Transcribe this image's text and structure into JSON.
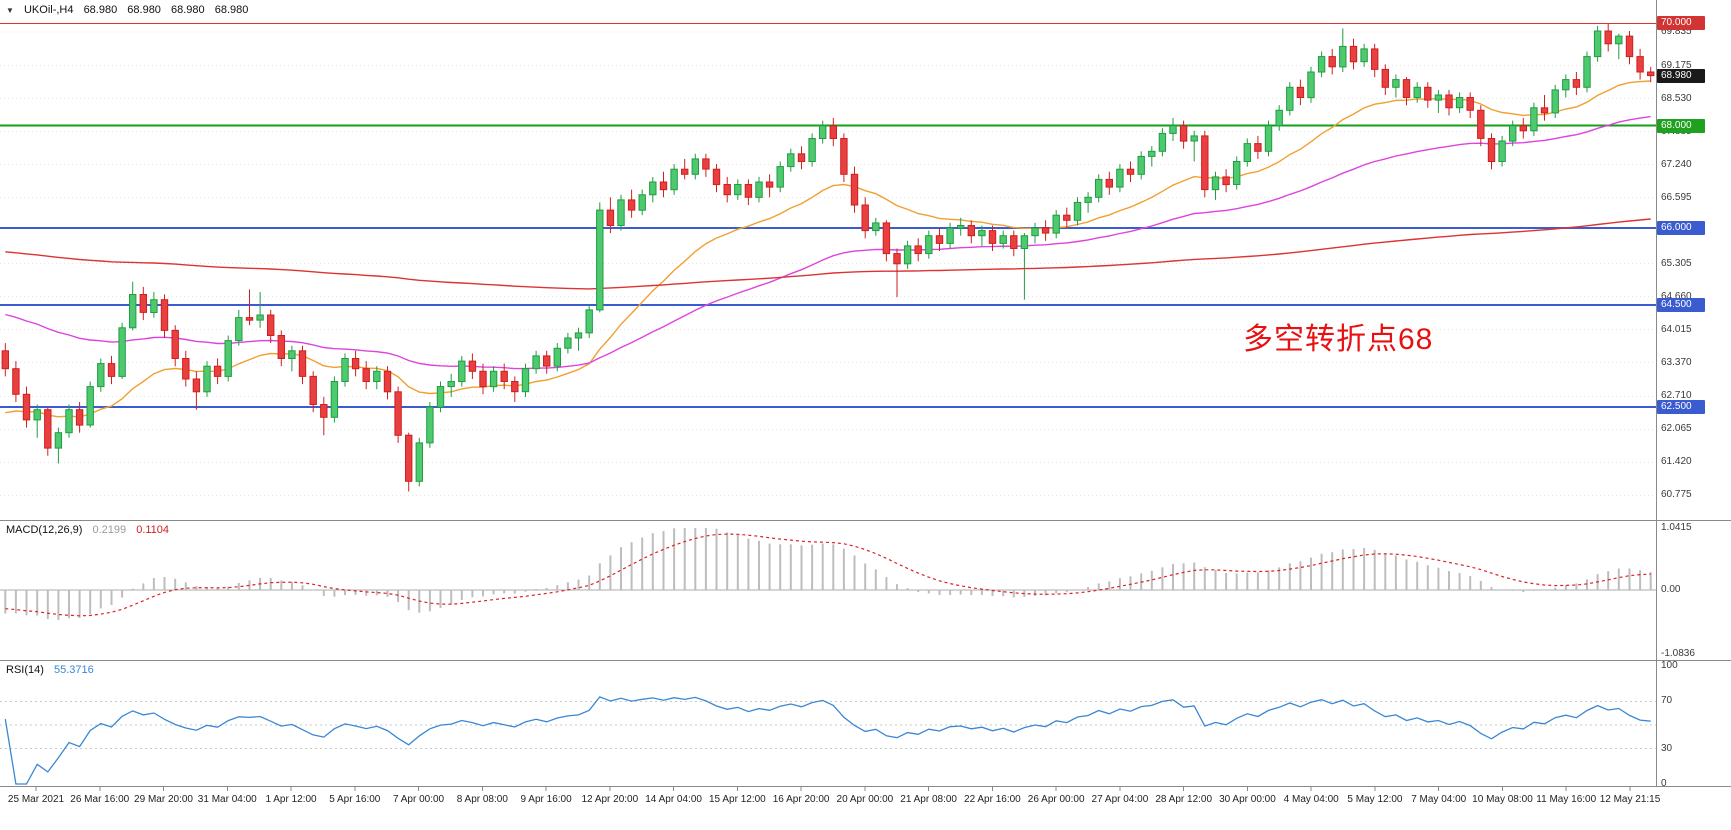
{
  "header": {
    "collapse_icon": "▼",
    "title": "UKOil-,H4",
    "open": "68.980",
    "high": "68.980",
    "low": "68.980",
    "close": "68.980"
  },
  "annotation": {
    "text": "多空转折点68",
    "color": "#e81010"
  },
  "macd": {
    "label": "MACD(12,26,9)",
    "value": "0.2199",
    "signal_value": "0.1104",
    "scale_labels": [
      "1.0415",
      "0.00",
      "-1.0836"
    ],
    "range": [
      -1.0836,
      1.0415
    ]
  },
  "rsi": {
    "label": "RSI(14)",
    "value": "55.3716",
    "scale_labels": [
      "100",
      "70",
      "30",
      "0"
    ],
    "levels": [
      70,
      50,
      30
    ]
  },
  "price_scale": {
    "labels": [
      "69.835",
      "69.175",
      "68.530",
      "67.885",
      "67.240",
      "66.595",
      "65.305",
      "64.660",
      "64.015",
      "63.370",
      "62.710",
      "62.065",
      "61.420",
      "60.775"
    ],
    "values": [
      69.835,
      69.175,
      68.53,
      67.885,
      67.24,
      66.595,
      65.305,
      64.66,
      64.015,
      63.37,
      62.71,
      62.065,
      61.42,
      60.775
    ]
  },
  "badges": [
    {
      "text": "70.000",
      "value": 70.0,
      "bg": "#d23333"
    },
    {
      "text": "68.980",
      "value": 68.98,
      "bg": "#1a1a1a"
    },
    {
      "text": "68.000",
      "value": 68.0,
      "bg": "#1fa11f"
    },
    {
      "text": "66.000",
      "value": 66.0,
      "bg": "#3b5bd0"
    },
    {
      "text": "64.500",
      "value": 64.5,
      "bg": "#3b5bd0"
    },
    {
      "text": "62.500",
      "value": 62.5,
      "bg": "#3b5bd0"
    }
  ],
  "hlines": [
    {
      "value": 70.0,
      "color": "#e03030",
      "width": 1
    },
    {
      "value": 68.0,
      "color": "#15a015",
      "width": 2
    },
    {
      "value": 66.0,
      "color": "#3b5bd0",
      "width": 2
    },
    {
      "value": 64.5,
      "color": "#3b5bd0",
      "width": 2
    },
    {
      "value": 62.5,
      "color": "#3b5bd0",
      "width": 2
    }
  ],
  "time_axis": [
    "25 Mar 2021",
    "26 Mar 16:00",
    "29 Mar 20:00",
    "31 Mar 04:00",
    "1 Apr 12:00",
    "5 Apr 16:00",
    "7 Apr 00:00",
    "8 Apr 08:00",
    "9 Apr 16:00",
    "12 Apr 20:00",
    "14 Apr 04:00",
    "15 Apr 12:00",
    "16 Apr 20:00",
    "20 Apr 00:00",
    "21 Apr 08:00",
    "22 Apr 16:00",
    "26 Apr 00:00",
    "27 Apr 04:00",
    "28 Apr 12:00",
    "30 Apr 00:00",
    "4 May 04:00",
    "5 May 12:00",
    "7 May 04:00",
    "10 May 08:00",
    "11 May 16:00",
    "12 May 21:15"
  ],
  "chart_data": {
    "type": "candlestick",
    "symbol": "UKOil-",
    "timeframe": "H4",
    "title": "UKOil-,H4 68.980 68.980 68.980 68.980",
    "price_axis_range": [
      60.45,
      70.3
    ],
    "horizontal_levels": [
      70.0,
      68.0,
      66.0,
      64.5,
      62.5
    ],
    "current_price": 68.98,
    "candles_ohlc": [
      [
        63.6,
        63.75,
        63.1,
        63.25
      ],
      [
        63.25,
        63.4,
        62.6,
        62.75
      ],
      [
        62.75,
        62.9,
        62.1,
        62.25
      ],
      [
        62.25,
        62.55,
        61.9,
        62.45
      ],
      [
        62.45,
        62.5,
        61.55,
        61.7
      ],
      [
        61.7,
        62.1,
        61.4,
        62.0
      ],
      [
        62.0,
        62.55,
        61.9,
        62.45
      ],
      [
        62.45,
        62.6,
        62.0,
        62.15
      ],
      [
        62.15,
        63.0,
        62.1,
        62.9
      ],
      [
        62.9,
        63.45,
        62.8,
        63.35
      ],
      [
        63.35,
        63.5,
        62.95,
        63.1
      ],
      [
        63.1,
        64.15,
        63.05,
        64.05
      ],
      [
        64.05,
        64.95,
        64.0,
        64.7
      ],
      [
        64.7,
        64.85,
        64.2,
        64.35
      ],
      [
        64.35,
        64.75,
        64.25,
        64.6
      ],
      [
        64.6,
        64.7,
        63.85,
        64.0
      ],
      [
        64.0,
        64.1,
        63.3,
        63.45
      ],
      [
        63.45,
        63.6,
        62.9,
        63.05
      ],
      [
        63.05,
        63.2,
        62.45,
        62.8
      ],
      [
        62.8,
        63.4,
        62.7,
        63.3
      ],
      [
        63.3,
        63.45,
        62.95,
        63.1
      ],
      [
        63.1,
        63.9,
        63.0,
        63.8
      ],
      [
        63.8,
        64.4,
        63.7,
        64.25
      ],
      [
        64.25,
        64.8,
        64.1,
        64.2
      ],
      [
        64.2,
        64.75,
        64.05,
        64.3
      ],
      [
        64.3,
        64.4,
        63.75,
        63.9
      ],
      [
        63.9,
        64.0,
        63.3,
        63.45
      ],
      [
        63.45,
        63.7,
        63.2,
        63.6
      ],
      [
        63.6,
        63.7,
        62.95,
        63.1
      ],
      [
        63.1,
        63.2,
        62.4,
        62.55
      ],
      [
        62.55,
        62.7,
        61.95,
        62.3
      ],
      [
        62.3,
        63.1,
        62.2,
        63.0
      ],
      [
        63.0,
        63.55,
        62.9,
        63.45
      ],
      [
        63.45,
        63.6,
        63.1,
        63.25
      ],
      [
        63.25,
        63.4,
        62.85,
        63.0
      ],
      [
        63.0,
        63.3,
        62.85,
        63.2
      ],
      [
        63.2,
        63.3,
        62.65,
        62.8
      ],
      [
        62.8,
        62.9,
        61.8,
        61.95
      ],
      [
        61.95,
        62.0,
        60.85,
        61.05
      ],
      [
        61.05,
        61.9,
        60.95,
        61.8
      ],
      [
        61.8,
        62.6,
        61.7,
        62.5
      ],
      [
        62.5,
        63.0,
        62.4,
        62.9
      ],
      [
        62.9,
        63.15,
        62.7,
        63.0
      ],
      [
        63.0,
        63.5,
        62.9,
        63.4
      ],
      [
        63.4,
        63.55,
        63.05,
        63.2
      ],
      [
        63.2,
        63.35,
        62.75,
        62.9
      ],
      [
        62.9,
        63.3,
        62.8,
        63.2
      ],
      [
        63.2,
        63.35,
        62.85,
        63.0
      ],
      [
        63.0,
        63.1,
        62.6,
        62.8
      ],
      [
        62.8,
        63.35,
        62.7,
        63.25
      ],
      [
        63.25,
        63.6,
        63.15,
        63.5
      ],
      [
        63.5,
        63.6,
        63.15,
        63.3
      ],
      [
        63.3,
        63.75,
        63.2,
        63.65
      ],
      [
        63.65,
        63.95,
        63.55,
        63.85
      ],
      [
        63.85,
        64.05,
        63.6,
        63.95
      ],
      [
        63.95,
        64.5,
        63.85,
        64.4
      ],
      [
        64.4,
        66.5,
        64.35,
        66.35
      ],
      [
        66.35,
        66.6,
        65.9,
        66.05
      ],
      [
        66.05,
        66.65,
        65.95,
        66.55
      ],
      [
        66.55,
        66.75,
        66.2,
        66.35
      ],
      [
        66.35,
        66.75,
        66.25,
        66.65
      ],
      [
        66.65,
        67.0,
        66.5,
        66.9
      ],
      [
        66.9,
        67.1,
        66.6,
        66.75
      ],
      [
        66.75,
        67.25,
        66.65,
        67.15
      ],
      [
        67.15,
        67.35,
        66.95,
        67.05
      ],
      [
        67.05,
        67.45,
        66.95,
        67.35
      ],
      [
        67.35,
        67.45,
        67.0,
        67.15
      ],
      [
        67.15,
        67.25,
        66.7,
        66.85
      ],
      [
        66.85,
        67.0,
        66.5,
        66.65
      ],
      [
        66.65,
        66.95,
        66.55,
        66.85
      ],
      [
        66.85,
        66.95,
        66.45,
        66.6
      ],
      [
        66.6,
        67.0,
        66.5,
        66.9
      ],
      [
        66.9,
        67.05,
        66.6,
        66.8
      ],
      [
        66.8,
        67.3,
        66.7,
        67.2
      ],
      [
        67.2,
        67.55,
        67.1,
        67.45
      ],
      [
        67.45,
        67.6,
        67.15,
        67.3
      ],
      [
        67.3,
        67.85,
        67.2,
        67.75
      ],
      [
        67.75,
        68.1,
        67.65,
        68.0
      ],
      [
        68.0,
        68.15,
        67.6,
        67.75
      ],
      [
        67.75,
        67.85,
        66.9,
        67.05
      ],
      [
        67.05,
        67.2,
        66.3,
        66.45
      ],
      [
        66.45,
        66.6,
        65.8,
        65.95
      ],
      [
        65.95,
        66.2,
        65.85,
        66.1
      ],
      [
        66.1,
        66.15,
        65.35,
        65.5
      ],
      [
        65.5,
        65.6,
        64.65,
        65.3
      ],
      [
        65.3,
        65.75,
        65.2,
        65.65
      ],
      [
        65.65,
        65.8,
        65.35,
        65.5
      ],
      [
        65.5,
        65.95,
        65.4,
        65.85
      ],
      [
        65.85,
        66.0,
        65.55,
        65.7
      ],
      [
        65.7,
        66.1,
        65.6,
        66.0
      ],
      [
        66.0,
        66.2,
        65.85,
        66.05
      ],
      [
        66.05,
        66.15,
        65.7,
        65.85
      ],
      [
        65.85,
        66.05,
        65.65,
        65.95
      ],
      [
        65.95,
        66.05,
        65.55,
        65.7
      ],
      [
        65.7,
        65.95,
        65.6,
        65.85
      ],
      [
        65.85,
        65.95,
        65.45,
        65.6
      ],
      [
        65.6,
        65.9,
        64.6,
        65.85
      ],
      [
        65.85,
        66.1,
        65.7,
        66.0
      ],
      [
        66.0,
        66.15,
        65.75,
        65.9
      ],
      [
        65.9,
        66.35,
        65.8,
        66.25
      ],
      [
        66.25,
        66.4,
        66.0,
        66.15
      ],
      [
        66.15,
        66.6,
        66.05,
        66.5
      ],
      [
        66.5,
        66.7,
        66.3,
        66.6
      ],
      [
        66.6,
        67.05,
        66.5,
        66.95
      ],
      [
        66.95,
        67.1,
        66.65,
        66.8
      ],
      [
        66.8,
        67.25,
        66.7,
        67.15
      ],
      [
        67.15,
        67.3,
        66.9,
        67.05
      ],
      [
        67.05,
        67.5,
        66.95,
        67.4
      ],
      [
        67.4,
        67.6,
        67.2,
        67.5
      ],
      [
        67.5,
        67.95,
        67.4,
        67.85
      ],
      [
        67.85,
        68.15,
        67.7,
        68.0
      ],
      [
        68.0,
        68.1,
        67.55,
        67.7
      ],
      [
        67.7,
        67.9,
        67.3,
        67.8
      ],
      [
        67.8,
        67.9,
        66.6,
        66.75
      ],
      [
        66.75,
        67.1,
        66.55,
        67.0
      ],
      [
        67.0,
        67.15,
        66.7,
        66.85
      ],
      [
        66.85,
        67.4,
        66.75,
        67.3
      ],
      [
        67.3,
        67.75,
        67.2,
        67.65
      ],
      [
        67.65,
        67.8,
        67.35,
        67.5
      ],
      [
        67.5,
        68.1,
        67.4,
        68.0
      ],
      [
        68.0,
        68.4,
        67.9,
        68.3
      ],
      [
        68.3,
        68.85,
        68.2,
        68.75
      ],
      [
        68.75,
        68.9,
        68.4,
        68.55
      ],
      [
        68.55,
        69.15,
        68.45,
        69.05
      ],
      [
        69.05,
        69.45,
        68.95,
        69.35
      ],
      [
        69.35,
        69.5,
        69.0,
        69.15
      ],
      [
        69.15,
        69.9,
        69.05,
        69.55
      ],
      [
        69.55,
        69.7,
        69.1,
        69.25
      ],
      [
        69.25,
        69.6,
        69.15,
        69.5
      ],
      [
        69.5,
        69.6,
        68.95,
        69.1
      ],
      [
        69.1,
        69.2,
        68.6,
        68.75
      ],
      [
        68.75,
        69.0,
        68.55,
        68.9
      ],
      [
        68.9,
        68.95,
        68.4,
        68.55
      ],
      [
        68.55,
        68.85,
        68.45,
        68.75
      ],
      [
        68.75,
        68.85,
        68.35,
        68.5
      ],
      [
        68.5,
        68.7,
        68.25,
        68.6
      ],
      [
        68.6,
        68.7,
        68.2,
        68.35
      ],
      [
        68.35,
        68.65,
        68.25,
        68.55
      ],
      [
        68.55,
        68.65,
        68.15,
        68.3
      ],
      [
        68.3,
        68.4,
        67.6,
        67.75
      ],
      [
        67.75,
        67.85,
        67.15,
        67.3
      ],
      [
        67.3,
        67.8,
        67.2,
        67.7
      ],
      [
        67.7,
        68.1,
        67.6,
        68.0
      ],
      [
        68.0,
        68.15,
        67.75,
        67.9
      ],
      [
        67.9,
        68.45,
        67.8,
        68.35
      ],
      [
        68.35,
        68.6,
        68.1,
        68.25
      ],
      [
        68.25,
        68.8,
        68.15,
        68.7
      ],
      [
        68.7,
        69.0,
        68.55,
        68.9
      ],
      [
        68.9,
        69.05,
        68.6,
        68.75
      ],
      [
        68.75,
        69.45,
        68.65,
        69.35
      ],
      [
        69.35,
        69.95,
        69.25,
        69.85
      ],
      [
        69.85,
        70.0,
        69.45,
        69.6
      ],
      [
        69.6,
        69.8,
        69.3,
        69.75
      ],
      [
        69.75,
        69.85,
        69.2,
        69.35
      ],
      [
        69.35,
        69.5,
        68.9,
        69.05
      ],
      [
        69.05,
        69.15,
        68.85,
        68.98
      ]
    ],
    "up_color": "#4ec970",
    "down_color": "#e84040",
    "moving_averages": [
      {
        "name": "ma-fast-orange",
        "color": "#f0a030",
        "period": 20,
        "seed": 62.3
      },
      {
        "name": "ma-mid-magenta",
        "color": "#dd44dd",
        "period": 55,
        "seed": 64.35
      },
      {
        "name": "ma-slow-red",
        "color": "#dd3333",
        "period": 300,
        "seed": 65.55
      }
    ],
    "macd_params": {
      "fast": 12,
      "slow": 26,
      "signal": 9,
      "current": 0.2199,
      "current_signal": 0.1104,
      "histogram_color": "#bdbdbd",
      "signal_color": "#dd2222",
      "axis_range": [
        -1.0836,
        1.0415
      ]
    },
    "rsi_params": {
      "period": 14,
      "current": 55.3716,
      "color": "#3a87d4",
      "axis_range": [
        0,
        100
      ],
      "levels": [
        70,
        50,
        30
      ]
    },
    "x_labels": [
      "25 Mar 2021",
      "26 Mar 16:00",
      "29 Mar 20:00",
      "31 Mar 04:00",
      "1 Apr 12:00",
      "5 Apr 16:00",
      "7 Apr 00:00",
      "8 Apr 08:00",
      "9 Apr 16:00",
      "12 Apr 20:00",
      "14 Apr 04:00",
      "15 Apr 12:00",
      "16 Apr 20:00",
      "20 Apr 00:00",
      "21 Apr 08:00",
      "22 Apr 16:00",
      "26 Apr 00:00",
      "27 Apr 04:00",
      "28 Apr 12:00",
      "30 Apr 00:00",
      "4 May 04:00",
      "5 May 12:00",
      "7 May 04:00",
      "10 May 08:00",
      "11 May 16:00",
      "12 May 21:15"
    ]
  }
}
